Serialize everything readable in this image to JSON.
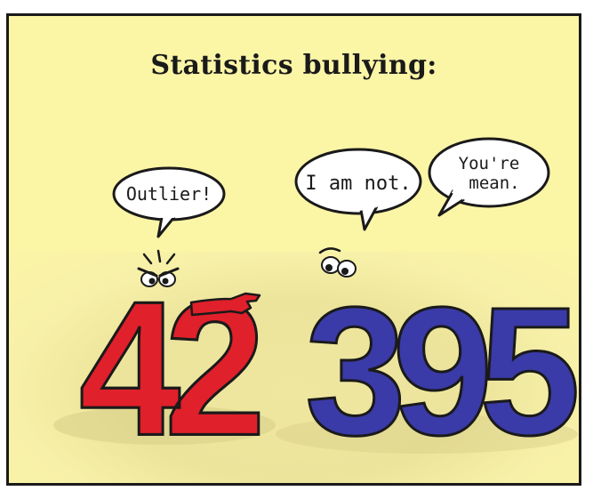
{
  "title": "Statistics bullying:",
  "bubbles": {
    "outlier": "Outlier!",
    "i_am_not": "I am not.",
    "youre_mean_line1": "You're",
    "youre_mean_line2": "mean."
  },
  "numbers": {
    "small": "42",
    "large": "395"
  },
  "colors": {
    "background": "#fbf5a6",
    "small_number": "#e0202a",
    "large_number": "#3a3aa8",
    "outline": "#1a1a1a"
  }
}
